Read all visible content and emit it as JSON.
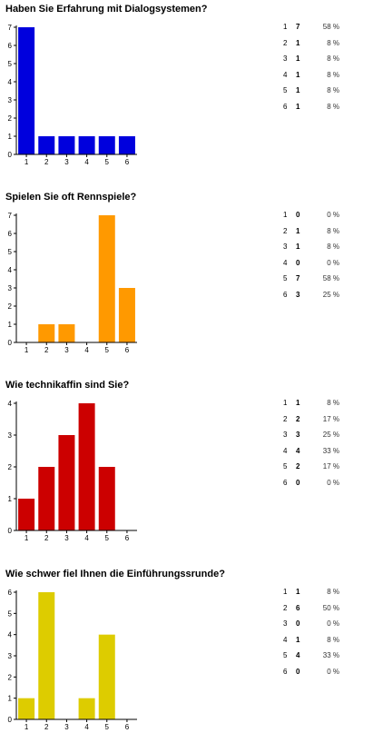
{
  "chart_data": [
    {
      "type": "bar",
      "title": "Haben Sie Erfahrung mit Dialogsystemen?",
      "categories": [
        "1",
        "2",
        "3",
        "4",
        "5",
        "6"
      ],
      "values": [
        7,
        1,
        1,
        1,
        1,
        1
      ],
      "percents": [
        "58 %",
        "8 %",
        "8 %",
        "8 %",
        "8 %",
        "8 %"
      ],
      "ylim": [
        0,
        7
      ],
      "yticks": [
        "0",
        "1",
        "2",
        "3",
        "4",
        "5",
        "6",
        "7"
      ],
      "color": "#0000dd",
      "xlabel": "",
      "ylabel": "",
      "grid": false
    },
    {
      "type": "bar",
      "title": "Spielen Sie oft Rennspiele?",
      "categories": [
        "1",
        "2",
        "3",
        "4",
        "5",
        "6"
      ],
      "values": [
        0,
        1,
        1,
        0,
        7,
        3
      ],
      "percents": [
        "0 %",
        "8 %",
        "8 %",
        "0 %",
        "58 %",
        "25 %"
      ],
      "ylim": [
        0,
        7
      ],
      "yticks": [
        "0",
        "1",
        "2",
        "3",
        "4",
        "5",
        "6",
        "7"
      ],
      "color": "#ff9900",
      "xlabel": "",
      "ylabel": "",
      "grid": false
    },
    {
      "type": "bar",
      "title": "Wie technikaffin sind Sie?",
      "categories": [
        "1",
        "2",
        "3",
        "4",
        "5",
        "6"
      ],
      "values": [
        1,
        2,
        3,
        4,
        2,
        0
      ],
      "percents": [
        "8 %",
        "17 %",
        "25 %",
        "33 %",
        "17 %",
        "0 %"
      ],
      "ylim": [
        0,
        4
      ],
      "yticks": [
        "0",
        "1",
        "2",
        "3",
        "4"
      ],
      "color": "#cc0000",
      "xlabel": "",
      "ylabel": "",
      "grid": false
    },
    {
      "type": "bar",
      "title": "Wie schwer fiel Ihnen die Einführungssrunde?",
      "categories": [
        "1",
        "2",
        "3",
        "4",
        "5",
        "6"
      ],
      "values": [
        1,
        6,
        0,
        1,
        4,
        0
      ],
      "percents": [
        "8 %",
        "50 %",
        "0 %",
        "8 %",
        "33 %",
        "0 %"
      ],
      "ylim": [
        0,
        6
      ],
      "yticks": [
        "0",
        "1",
        "2",
        "3",
        "4",
        "5",
        "6"
      ],
      "color": "#ddcc00",
      "xlabel": "",
      "ylabel": "",
      "grid": false
    }
  ]
}
